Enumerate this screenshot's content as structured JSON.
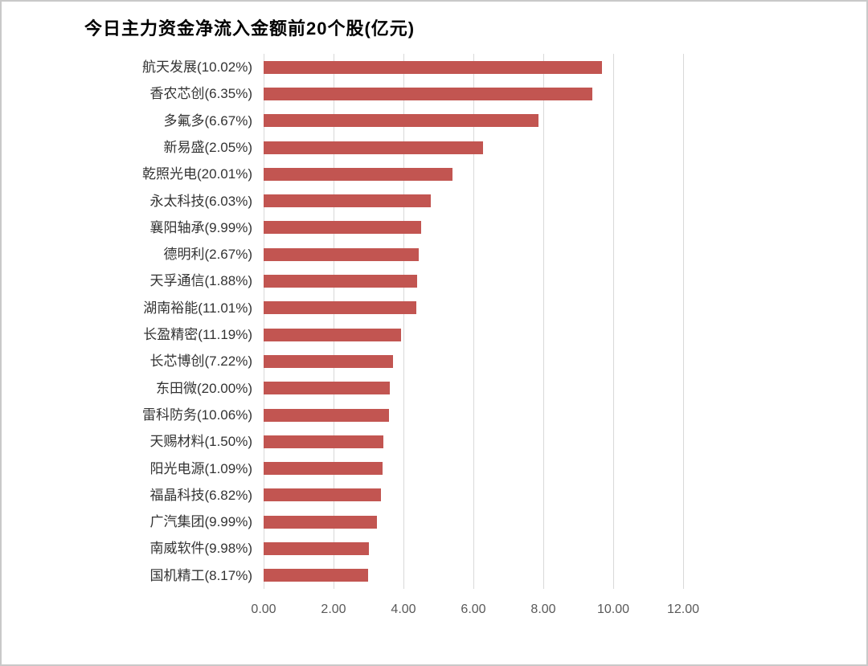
{
  "title": "今日主力资金净流入金额前20个股(亿元)",
  "chart_data": {
    "type": "bar",
    "orientation": "horizontal",
    "title": "今日主力资金净流入金额前20个股(亿元)",
    "unit": "亿元",
    "categories": [
      "航天发展(10.02%)",
      "香农芯创(6.35%)",
      "多氟多(6.67%)",
      "新易盛(2.05%)",
      "乾照光电(20.01%)",
      "永太科技(6.03%)",
      "襄阳轴承(9.99%)",
      "德明利(2.67%)",
      "天孚通信(1.88%)",
      "湖南裕能(11.01%)",
      "长盈精密(11.19%)",
      "长芯博创(7.22%)",
      "东田微(20.00%)",
      "雷科防务(10.06%)",
      "天赐材料(1.50%)",
      "阳光电源(1.09%)",
      "福晶科技(6.82%)",
      "广汽集团(9.99%)",
      "南威软件(9.98%)",
      "国机精工(8.17%)"
    ],
    "values": [
      9.68,
      9.4,
      7.86,
      6.27,
      5.4,
      4.79,
      4.5,
      4.43,
      4.38,
      4.37,
      3.92,
      3.69,
      3.62,
      3.58,
      3.43,
      3.4,
      3.36,
      3.23,
      3.0,
      2.98
    ],
    "xlabel": "",
    "ylabel": "",
    "xlim": [
      0,
      12
    ],
    "x_ticks": [
      "0.00",
      "2.00",
      "4.00",
      "6.00",
      "8.00",
      "10.00",
      "12.00"
    ],
    "grid": true,
    "legend_position": "none",
    "bar_color": "#c25551"
  },
  "colors": {
    "bar": "#c25551",
    "gridline": "#d9d9d9",
    "tick_text": "#595959",
    "category_text": "#333333",
    "title_text": "#000000",
    "background": "#ffffff",
    "frame_border": "#c9c9c9"
  }
}
